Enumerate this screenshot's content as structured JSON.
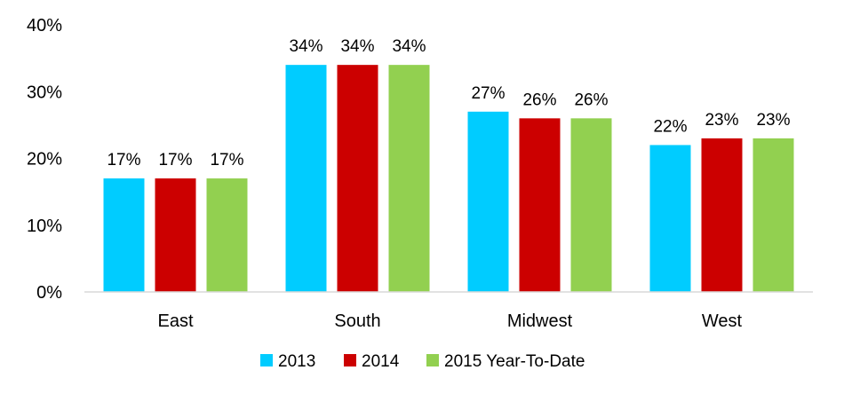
{
  "chart_data": {
    "type": "bar",
    "title": "",
    "xlabel": "",
    "ylabel": "",
    "categories": [
      "East",
      "South",
      "Midwest",
      "West"
    ],
    "series": [
      {
        "name": "2013",
        "color": "#00CCFF",
        "values": [
          17,
          34,
          27,
          22
        ],
        "labels": [
          "17%",
          "34%",
          "27%",
          "22%"
        ]
      },
      {
        "name": "2014",
        "color": "#CC0000",
        "values": [
          17,
          34,
          26,
          23
        ],
        "labels": [
          "17%",
          "34%",
          "26%",
          "23%"
        ]
      },
      {
        "name": "2015 Year-To-Date",
        "color": "#92D050",
        "values": [
          17,
          34,
          26,
          23
        ],
        "labels": [
          "17%",
          "34%",
          "26%",
          "23%"
        ]
      }
    ],
    "ylim": [
      0,
      40
    ],
    "yticks": [
      0,
      10,
      20,
      30,
      40
    ],
    "ytick_labels": [
      "0%",
      "10%",
      "20%",
      "30%",
      "40%"
    ],
    "grid": false,
    "legend_position": "bottom"
  }
}
